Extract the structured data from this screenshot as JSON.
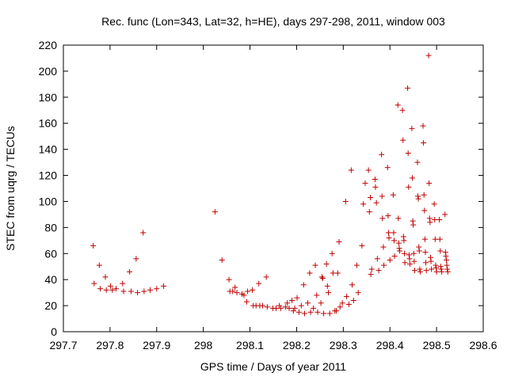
{
  "chart_data": {
    "type": "scatter",
    "title": "Rec. func (Lon=343, Lat=32, h=HE), days 297-298, 2011, window 003",
    "xlabel": "GPS time / Days of year 2011",
    "ylabel": "STEC from uqrg / TECUs",
    "xlim": [
      297.7,
      298.6
    ],
    "ylim": [
      0,
      220
    ],
    "xticks": [
      297.7,
      297.8,
      297.9,
      298,
      298.1,
      298.2,
      298.3,
      298.4,
      298.5,
      298.6
    ],
    "xtick_labels": [
      "297.7",
      "297.8",
      "297.9",
      "298",
      "298.1",
      "298.2",
      "298.3",
      "298.4",
      "298.5",
      "298.6"
    ],
    "yticks": [
      0,
      20,
      40,
      60,
      80,
      100,
      120,
      140,
      160,
      180,
      200,
      220
    ],
    "ytick_labels": [
      "0",
      "20",
      "40",
      "60",
      "80",
      "100",
      "120",
      "140",
      "160",
      "180",
      "200",
      "220"
    ],
    "grid": false,
    "marker": "plus",
    "color": "#c00000",
    "series": [
      {
        "points": [
          [
            297.764,
            66
          ],
          [
            297.766,
            37
          ],
          [
            297.777,
            51
          ],
          [
            297.779,
            33
          ],
          [
            297.79,
            42
          ],
          [
            297.792,
            32
          ],
          [
            297.801,
            35
          ],
          [
            297.805,
            32
          ],
          [
            297.813,
            33
          ],
          [
            297.827,
            37
          ],
          [
            297.829,
            31
          ],
          [
            297.842,
            46
          ],
          [
            297.845,
            31
          ],
          [
            297.856,
            56
          ],
          [
            297.859,
            30
          ],
          [
            297.871,
            76
          ],
          [
            297.873,
            31
          ],
          [
            297.886,
            32
          ],
          [
            297.9,
            33
          ],
          [
            297.915,
            35
          ],
          [
            298.025,
            92
          ],
          [
            298.04,
            55
          ],
          [
            298.055,
            40
          ],
          [
            298.057,
            31
          ],
          [
            298.063,
            31
          ],
          [
            298.068,
            34
          ],
          [
            298.072,
            30
          ],
          [
            298.083,
            29
          ],
          [
            298.087,
            28
          ],
          [
            298.093,
            23
          ],
          [
            298.095,
            31
          ],
          [
            298.105,
            32
          ],
          [
            298.107,
            20
          ],
          [
            298.113,
            20
          ],
          [
            298.119,
            37
          ],
          [
            298.121,
            20
          ],
          [
            298.127,
            20
          ],
          [
            298.135,
            42
          ],
          [
            298.137,
            19
          ],
          [
            298.149,
            18
          ],
          [
            298.156,
            18
          ],
          [
            298.163,
            20
          ],
          [
            298.166,
            18
          ],
          [
            298.176,
            19
          ],
          [
            298.18,
            22
          ],
          [
            298.184,
            18
          ],
          [
            298.19,
            24
          ],
          [
            298.193,
            16
          ],
          [
            298.196,
            18
          ],
          [
            298.201,
            26
          ],
          [
            298.205,
            15
          ],
          [
            298.21,
            20
          ],
          [
            298.215,
            36
          ],
          [
            298.217,
            14
          ],
          [
            298.224,
            22
          ],
          [
            298.228,
            45
          ],
          [
            298.23,
            15
          ],
          [
            298.236,
            18
          ],
          [
            298.24,
            51
          ],
          [
            298.243,
            28
          ],
          [
            298.245,
            15
          ],
          [
            298.252,
            22
          ],
          [
            298.254,
            42
          ],
          [
            298.256,
            41
          ],
          [
            298.258,
            14
          ],
          [
            298.264,
            52
          ],
          [
            298.266,
            35
          ],
          [
            298.268,
            30
          ],
          [
            298.271,
            14
          ],
          [
            298.276,
            60
          ],
          [
            298.278,
            45
          ],
          [
            298.282,
            16
          ],
          [
            298.285,
            16
          ],
          [
            298.288,
            45
          ],
          [
            298.291,
            69
          ],
          [
            298.293,
            19
          ],
          [
            298.298,
            22
          ],
          [
            298.305,
            100
          ],
          [
            298.307,
            27
          ],
          [
            298.312,
            21
          ],
          [
            298.317,
            124
          ],
          [
            298.319,
            36
          ],
          [
            298.322,
            24
          ],
          [
            298.329,
            51
          ],
          [
            298.332,
            30
          ],
          [
            298.34,
            66
          ],
          [
            298.343,
            98
          ],
          [
            298.347,
            114
          ],
          [
            298.354,
            124
          ],
          [
            298.356,
            92
          ],
          [
            298.358,
            103
          ],
          [
            298.359,
            44
          ],
          [
            298.361,
            48
          ],
          [
            298.368,
            117
          ],
          [
            298.369,
            111
          ],
          [
            298.371,
            99
          ],
          [
            298.373,
            56
          ],
          [
            298.376,
            47
          ],
          [
            298.382,
            136
          ],
          [
            298.383,
            104
          ],
          [
            298.384,
            87
          ],
          [
            298.386,
            65
          ],
          [
            298.387,
            51
          ],
          [
            298.395,
            126
          ],
          [
            298.396,
            89
          ],
          [
            298.397,
            76
          ],
          [
            298.398,
            72
          ],
          [
            298.4,
            55
          ],
          [
            298.407,
            105
          ],
          [
            298.408,
            76
          ],
          [
            298.409,
            70
          ],
          [
            298.41,
            58
          ],
          [
            298.417,
            174
          ],
          [
            298.418,
            87
          ],
          [
            298.419,
            68
          ],
          [
            298.42,
            64
          ],
          [
            298.421,
            62
          ],
          [
            298.427,
            170
          ],
          [
            298.428,
            147
          ],
          [
            298.429,
            73
          ],
          [
            298.43,
            70
          ],
          [
            298.431,
            60
          ],
          [
            298.432,
            53
          ],
          [
            298.438,
            187
          ],
          [
            298.439,
            137
          ],
          [
            298.44,
            111
          ],
          [
            298.441,
            59
          ],
          [
            298.442,
            56
          ],
          [
            298.443,
            52
          ],
          [
            298.447,
            156
          ],
          [
            298.448,
            118
          ],
          [
            298.449,
            85
          ],
          [
            298.45,
            82
          ],
          [
            298.451,
            60
          ],
          [
            298.452,
            54
          ],
          [
            298.453,
            47
          ],
          [
            298.459,
            130
          ],
          [
            298.46,
            104
          ],
          [
            298.461,
            102
          ],
          [
            298.462,
            65
          ],
          [
            298.463,
            62
          ],
          [
            298.464,
            48
          ],
          [
            298.465,
            46
          ],
          [
            298.471,
            158
          ],
          [
            298.472,
            145
          ],
          [
            298.473,
            105
          ],
          [
            298.474,
            93
          ],
          [
            298.475,
            71
          ],
          [
            298.476,
            61
          ],
          [
            298.477,
            53
          ],
          [
            298.478,
            47
          ],
          [
            298.483,
            212
          ],
          [
            298.484,
            114
          ],
          [
            298.485,
            87
          ],
          [
            298.486,
            84
          ],
          [
            298.487,
            57
          ],
          [
            298.488,
            54
          ],
          [
            298.489,
            48
          ],
          [
            298.495,
            98
          ],
          [
            298.496,
            86
          ],
          [
            298.497,
            71
          ],
          [
            298.498,
            51
          ],
          [
            298.499,
            49
          ],
          [
            298.5,
            46
          ],
          [
            298.506,
            86
          ],
          [
            298.507,
            71
          ],
          [
            298.508,
            62
          ],
          [
            298.509,
            50
          ],
          [
            298.51,
            48
          ],
          [
            298.511,
            46
          ],
          [
            298.518,
            90
          ],
          [
            298.519,
            61
          ],
          [
            298.52,
            58
          ],
          [
            298.521,
            55
          ],
          [
            298.522,
            51
          ],
          [
            298.523,
            48
          ],
          [
            298.524,
            46
          ]
        ]
      }
    ]
  }
}
